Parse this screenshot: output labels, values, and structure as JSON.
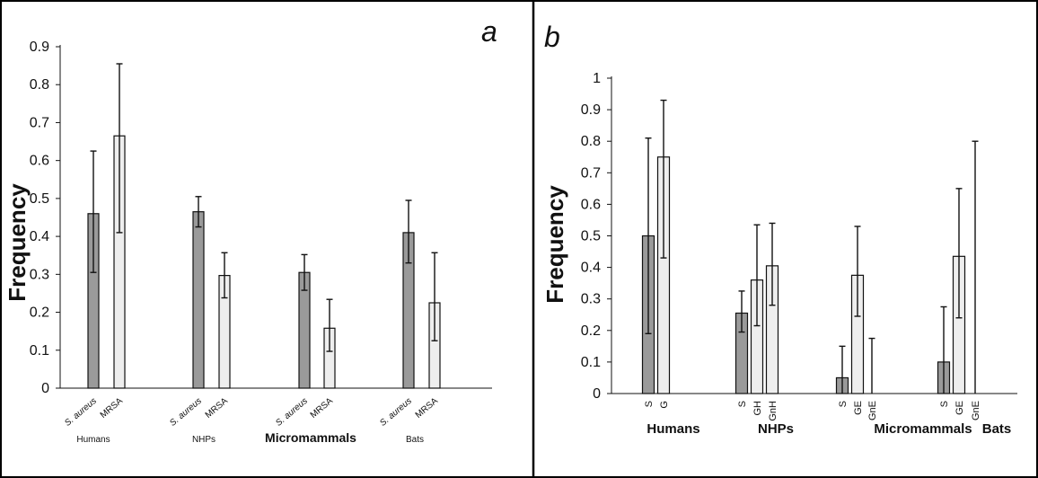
{
  "chart_data": [
    {
      "panel_label": "a",
      "type": "bar",
      "ylabel": "Frequency",
      "ylim": [
        0,
        0.9
      ],
      "yticks": [
        "0",
        "0.1",
        "0.2",
        "0.3",
        "0.4",
        "0.5",
        "0.6",
        "0.7",
        "0.8",
        "0.9"
      ],
      "groups": [
        {
          "label": "Humans",
          "bars": [
            {
              "label": "S. aureus",
              "italic": true,
              "value": 0.46,
              "err_low": 0.305,
              "err_high": 0.625,
              "shade": "dark"
            },
            {
              "label": "MRSA",
              "italic": false,
              "value": 0.665,
              "err_low": 0.41,
              "err_high": 0.855,
              "shade": "light"
            }
          ]
        },
        {
          "label": "NHPs",
          "bars": [
            {
              "label": "S. aureus",
              "italic": true,
              "value": 0.465,
              "err_low": 0.425,
              "err_high": 0.505,
              "shade": "dark"
            },
            {
              "label": "MRSA",
              "italic": false,
              "value": 0.297,
              "err_low": 0.238,
              "err_high": 0.357,
              "shade": "light"
            }
          ]
        },
        {
          "label": "Micromammals",
          "bars": [
            {
              "label": "S. aureus",
              "italic": true,
              "value": 0.305,
              "err_low": 0.258,
              "err_high": 0.352,
              "shade": "dark"
            },
            {
              "label": "MRSA",
              "italic": false,
              "value": 0.158,
              "err_low": 0.097,
              "err_high": 0.234,
              "shade": "light"
            }
          ]
        },
        {
          "label": "Bats",
          "bars": [
            {
              "label": "S. aureus",
              "italic": true,
              "value": 0.41,
              "err_low": 0.33,
              "err_high": 0.495,
              "shade": "dark"
            },
            {
              "label": "MRSA",
              "italic": false,
              "value": 0.225,
              "err_low": 0.125,
              "err_high": 0.357,
              "shade": "light"
            }
          ]
        }
      ]
    },
    {
      "panel_label": "b",
      "type": "bar",
      "ylabel": "Frequency",
      "ylim": [
        0,
        1
      ],
      "yticks": [
        "0",
        "0.1",
        "0.2",
        "0.3",
        "0.4",
        "0.5",
        "0.6",
        "0.7",
        "0.8",
        "0.9",
        "1"
      ],
      "groups": [
        {
          "label": "Humans",
          "bars": [
            {
              "label": "S",
              "value": 0.5,
              "err_low": 0.19,
              "err_high": 0.81,
              "shade": "dark"
            },
            {
              "label": "G",
              "value": 0.75,
              "err_low": 0.43,
              "err_high": 0.93,
              "shade": "light"
            }
          ]
        },
        {
          "label": "NHPs",
          "bars": [
            {
              "label": "S",
              "value": 0.255,
              "err_low": 0.195,
              "err_high": 0.325,
              "shade": "dark"
            },
            {
              "label": "GH",
              "value": 0.36,
              "err_low": 0.215,
              "err_high": 0.535,
              "shade": "light"
            },
            {
              "label": "GnH",
              "value": 0.405,
              "err_low": 0.28,
              "err_high": 0.54,
              "shade": "light"
            }
          ]
        },
        {
          "label": "Micromammals",
          "bars": [
            {
              "label": "S",
              "value": 0.05,
              "err_low": 0.0,
              "err_high": 0.15,
              "shade": "dark"
            },
            {
              "label": "GE",
              "value": 0.375,
              "err_low": 0.245,
              "err_high": 0.53,
              "shade": "light"
            },
            {
              "label": "GnE",
              "value": 0.0,
              "err_low": 0.0,
              "err_high": 0.175,
              "shade": "light"
            }
          ]
        },
        {
          "label": "Bats",
          "bars": [
            {
              "label": "S",
              "value": 0.1,
              "err_low": 0.0,
              "err_high": 0.275,
              "shade": "dark"
            },
            {
              "label": "GE",
              "value": 0.435,
              "err_low": 0.24,
              "err_high": 0.65,
              "shade": "light"
            },
            {
              "label": "GnE",
              "value": 0.0,
              "err_low": 0.0,
              "err_high": 0.8,
              "shade": "light"
            }
          ]
        }
      ]
    }
  ],
  "colors": {
    "dark_bar": "#9a9a9a",
    "light_bar": "#eeeeee",
    "stroke": "#111111",
    "frame": "#000000"
  }
}
